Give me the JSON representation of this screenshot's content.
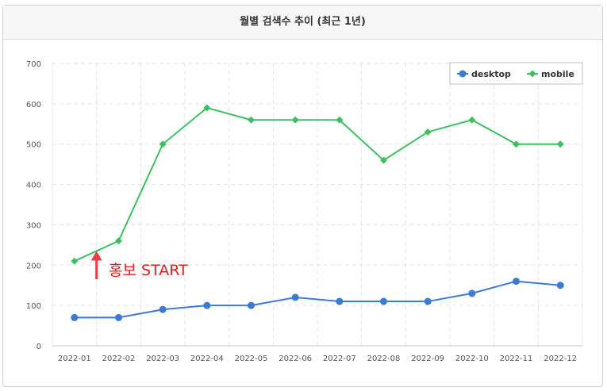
{
  "header": {
    "title": "월별 검색수 추이 (최근 1년)"
  },
  "chart_data": {
    "type": "line",
    "x": [
      "2022-01",
      "2022-02",
      "2022-03",
      "2022-04",
      "2022-05",
      "2022-06",
      "2022-07",
      "2022-08",
      "2022-09",
      "2022-10",
      "2022-11",
      "2022-12"
    ],
    "series": [
      {
        "name": "desktop",
        "color": "#3a7bd5",
        "marker": "circle",
        "values": [
          70,
          70,
          90,
          100,
          100,
          120,
          110,
          110,
          110,
          130,
          160,
          150
        ]
      },
      {
        "name": "mobile",
        "color": "#3cc060",
        "marker": "diamond",
        "values": [
          210,
          260,
          500,
          590,
          560,
          560,
          560,
          460,
          530,
          560,
          500,
          500
        ]
      }
    ],
    "ylim": [
      0,
      700
    ],
    "yticks": [
      0,
      100,
      200,
      300,
      400,
      500,
      600,
      700
    ],
    "grid": true,
    "legend": "top-right",
    "annotation": {
      "text": "홍보 START",
      "x": "2022-01",
      "value": 235,
      "color": "#e84040"
    }
  }
}
